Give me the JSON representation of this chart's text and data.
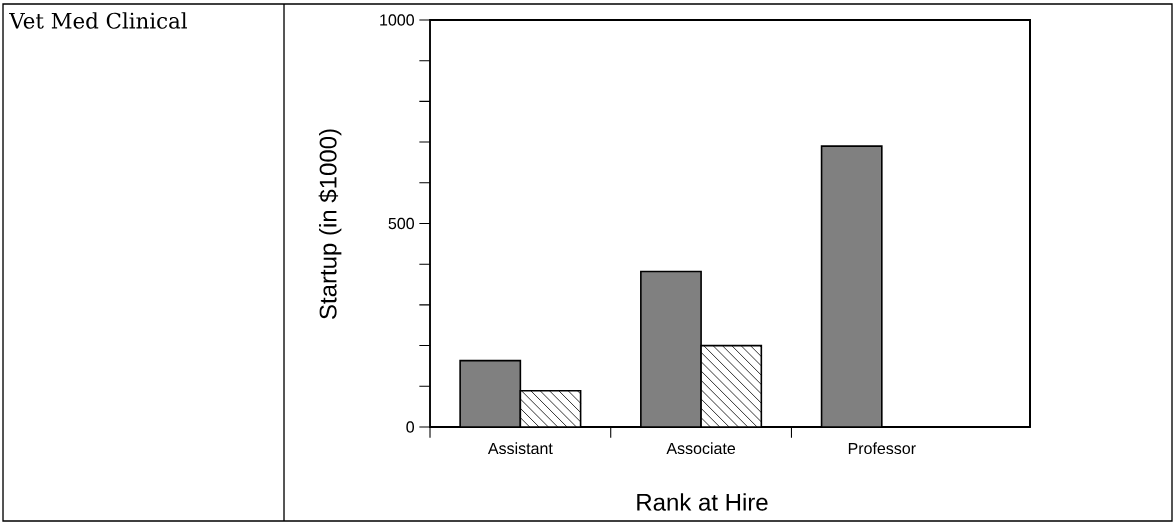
{
  "chart_data": {
    "type": "bar",
    "title": "Vet Med Clinical",
    "xlabel": "Rank at Hire",
    "ylabel": "Startup (in $1000)",
    "categories": [
      "Assistant",
      "Associate",
      "Professor"
    ],
    "series": [
      {
        "color": "#808080",
        "values": [
          163,
          382,
          690
        ]
      },
      {
        "color": "#000000",
        "values": [
          89,
          200,
          null
        ]
      }
    ],
    "ylim": [
      0,
      1000
    ],
    "yticks": [
      0,
      {
        "value": 100,
        "label": null
      },
      {
        "value": 200,
        "label": null
      },
      {
        "value": 300,
        "label": null
      },
      {
        "value": 400,
        "label": null
      },
      500,
      {
        "value": 600,
        "label": null
      },
      {
        "value": 700,
        "label": null
      },
      {
        "value": 800,
        "label": null
      },
      {
        "value": 900,
        "label": null
      },
      1000
    ],
    "grid": false
  }
}
